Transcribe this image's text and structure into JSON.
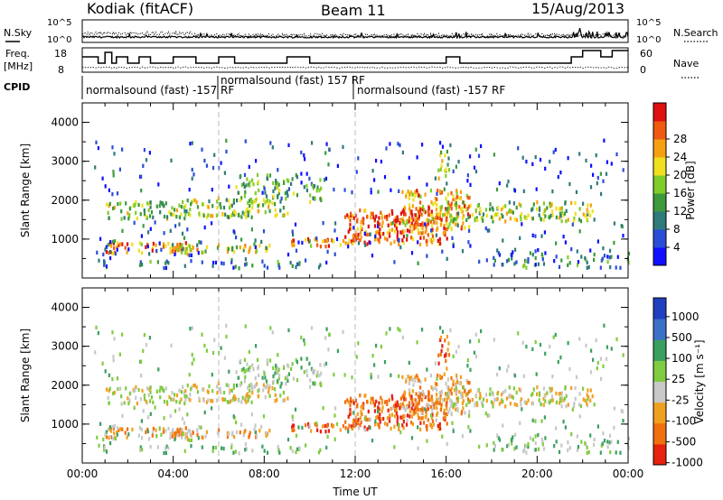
{
  "header": {
    "title": "Kodiak (fitACF)",
    "beam": "Beam 11",
    "date": "15/Aug/2013"
  },
  "noise_panel": {
    "left_label": "N.Sky",
    "right_label": "N.Search",
    "y_ticks_left": [
      "10^5",
      "10^0"
    ],
    "y_ticks_right": [
      "10^5",
      "10^0"
    ]
  },
  "freq_panel": {
    "left_label_1": "Freq.",
    "left_label_2": "[MHz]",
    "right_label": "Nave",
    "left_ticks": [
      "18",
      "8"
    ],
    "right_ticks": [
      "60",
      "0"
    ]
  },
  "cpid": {
    "label": "CPID",
    "segments": [
      {
        "text": "normalsound (fast) -157 RF"
      },
      {
        "text": "normalsound (fast) 157 RF"
      },
      {
        "text": "normalsound (fast) -157 RF"
      }
    ]
  },
  "chart_data": [
    {
      "type": "heatmap",
      "name": "power",
      "ylabel": "Slant Range [km]",
      "ylim": [
        0,
        4500
      ],
      "y_ticks": [
        "1000",
        "2000",
        "3000",
        "4000"
      ],
      "x_ticks": [
        "00:00",
        "04:00",
        "08:00",
        "12:00",
        "16:00",
        "20:00",
        "00:00"
      ],
      "colorbar_label": "Power [dB]",
      "colorbar_ticks": [
        "4",
        "8",
        "12",
        "16",
        "20",
        "24",
        "28"
      ],
      "colorbar_colors": [
        "#1010ff",
        "#2a4dd8",
        "#2f7a7a",
        "#3c9a3c",
        "#7fcc2a",
        "#f0e020",
        "#f5a010",
        "#ef5a10",
        "#e01010"
      ]
    },
    {
      "type": "heatmap",
      "name": "velocity",
      "ylabel": "Slant Range [km]",
      "ylim": [
        0,
        4500
      ],
      "y_ticks": [
        "1000",
        "2000",
        "3000",
        "4000"
      ],
      "x_ticks": [
        "00:00",
        "04:00",
        "08:00",
        "12:00",
        "16:00",
        "20:00",
        "00:00"
      ],
      "xlabel": "Time UT",
      "colorbar_label": "Velocity [m s⁻¹]",
      "colorbar_ticks": [
        "1000",
        "500",
        "100",
        "25",
        "-25",
        "-100",
        "-500",
        "-1000"
      ],
      "colorbar_colors": [
        "#2040c0",
        "#3a70c8",
        "#3aa060",
        "#80cc40",
        "#c8c8c8",
        "#f0a020",
        "#f07010",
        "#e82010"
      ]
    }
  ]
}
